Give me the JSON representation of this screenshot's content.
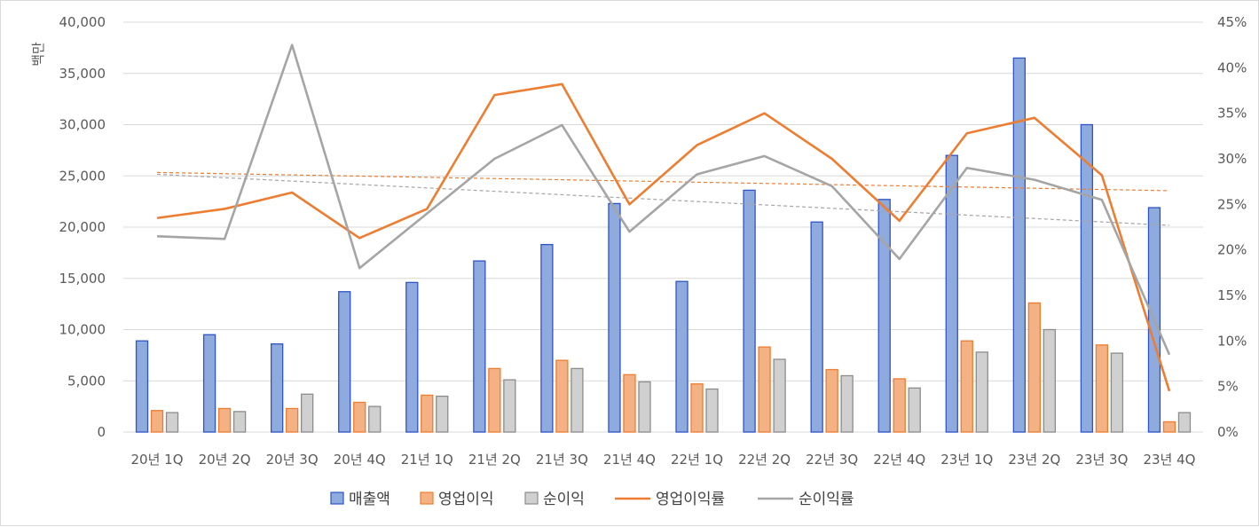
{
  "chart_data": {
    "type": "bar",
    "title": "",
    "ylabel": "백만",
    "ylim": [
      0,
      40000
    ],
    "ylim_right": [
      0,
      45
    ],
    "y_ticks": [
      "0",
      "5,000",
      "10,000",
      "15,000",
      "20,000",
      "25,000",
      "30,000",
      "35,000",
      "40,000"
    ],
    "y_ticks_right": [
      "0%",
      "5%",
      "10%",
      "15%",
      "20%",
      "25%",
      "30%",
      "35%",
      "40%",
      "45%"
    ],
    "categories": [
      "20년 1Q",
      "20년 2Q",
      "20년 3Q",
      "20년 4Q",
      "21년 1Q",
      "21년 2Q",
      "21년 3Q",
      "21년 4Q",
      "22년 1Q",
      "22년 2Q",
      "22년 3Q",
      "22년 4Q",
      "23년 1Q",
      "23년 2Q",
      "23년 3Q",
      "23년 4Q"
    ],
    "series": [
      {
        "name": "매출액",
        "type": "bar",
        "axis": "left",
        "color": "#8faadc",
        "border": "#2e55c6",
        "values": [
          8900,
          9500,
          8600,
          13700,
          14600,
          16700,
          18300,
          22300,
          14700,
          23600,
          20500,
          22700,
          27000,
          36500,
          30000,
          21900
        ]
      },
      {
        "name": "영업이익",
        "type": "bar",
        "axis": "left",
        "color": "#f4b183",
        "border": "#ed7d31",
        "values": [
          2100,
          2300,
          2300,
          2900,
          3600,
          6200,
          7000,
          5600,
          4700,
          8300,
          6100,
          5200,
          8900,
          12600,
          8500,
          1000
        ]
      },
      {
        "name": "순이익",
        "type": "bar",
        "axis": "left",
        "color": "#d0d0d0",
        "border": "#8c8c8c",
        "values": [
          1900,
          2000,
          3700,
          2500,
          3500,
          5100,
          6200,
          4900,
          4200,
          7100,
          5500,
          4300,
          7800,
          10000,
          7700,
          1900
        ]
      },
      {
        "name": "영업이익률",
        "type": "line",
        "axis": "right",
        "color": "#ed7d31",
        "values": [
          23.5,
          24.5,
          26.3,
          21.3,
          24.5,
          37.0,
          38.2,
          25.0,
          31.5,
          35.0,
          30.0,
          23.2,
          32.8,
          34.5,
          28.2,
          4.5
        ]
      },
      {
        "name": "순이익률",
        "type": "line",
        "axis": "right",
        "color": "#a5a5a5",
        "values": [
          21.5,
          21.2,
          42.5,
          18.0,
          24.0,
          30.0,
          33.7,
          22.0,
          28.3,
          30.3,
          27.0,
          19.0,
          29.0,
          27.7,
          25.5,
          8.5
        ]
      }
    ],
    "trendlines": [
      {
        "series": "영업이익률",
        "style": "dashed",
        "color": "#ed7d31",
        "start": 28.5,
        "end": 26.5
      },
      {
        "series": "순이익률",
        "style": "dashed",
        "color": "#a5a5a5",
        "start": 28.3,
        "end": 22.7
      }
    ],
    "legend_position": "bottom",
    "grid": true
  }
}
